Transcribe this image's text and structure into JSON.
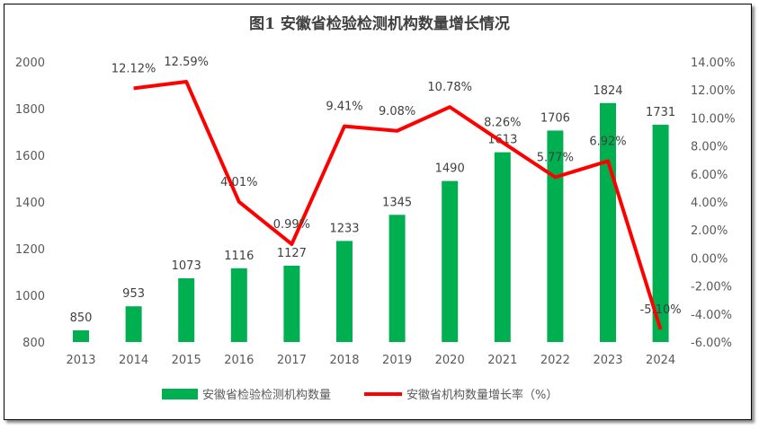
{
  "chart_data": {
    "type": "bar+line",
    "title": "图1 安徽省检验检测机构数量增长情况",
    "categories": [
      "2013",
      "2014",
      "2015",
      "2016",
      "2017",
      "2018",
      "2019",
      "2020",
      "2021",
      "2022",
      "2023",
      "2024"
    ],
    "series": [
      {
        "name": "安徽省检验检测机构数量",
        "type": "bar",
        "axis": "left",
        "color": "#00B050",
        "values": [
          850,
          953,
          1073,
          1116,
          1127,
          1233,
          1345,
          1490,
          1613,
          1706,
          1824,
          1731
        ],
        "labels": [
          "850",
          "953",
          "1073",
          "1116",
          "1127",
          "1233",
          "1345",
          "1490",
          "1613",
          "1706",
          "1824",
          "1731"
        ]
      },
      {
        "name": "安徽省机构数量增长率（%）",
        "type": "line",
        "axis": "right",
        "color": "#FF0000",
        "values": [
          null,
          12.12,
          12.59,
          4.01,
          0.99,
          9.41,
          9.08,
          10.78,
          8.26,
          5.77,
          6.92,
          -5.1
        ],
        "labels": [
          "",
          "12.12%",
          "12.59%",
          "4.01%",
          "0.99%",
          "9.41%",
          "9.08%",
          "10.78%",
          "8.26%",
          "5.77%",
          "6.92%",
          "-5.10%"
        ]
      }
    ],
    "y_left": {
      "range": [
        800,
        2000
      ],
      "ticks": [
        "800",
        "1000",
        "1200",
        "1400",
        "1600",
        "1800",
        "2000"
      ]
    },
    "y_right": {
      "range": [
        -6,
        14
      ],
      "ticks": [
        "-6.00%",
        "-4.00%",
        "-2.00%",
        "0.00%",
        "2.00%",
        "4.00%",
        "6.00%",
        "8.00%",
        "10.00%",
        "12.00%",
        "14.00%"
      ]
    },
    "grid": false,
    "legend": "bottom"
  }
}
